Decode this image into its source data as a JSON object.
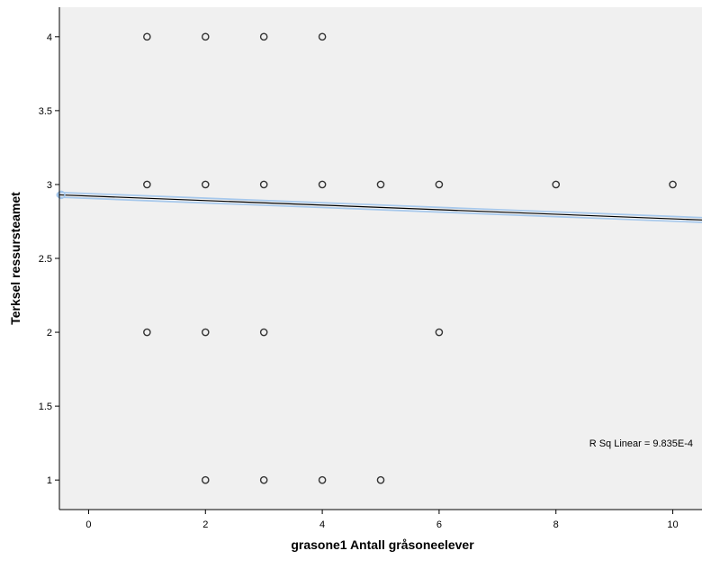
{
  "chart_data": {
    "type": "scatter",
    "xlabel": "grasone1 Antall gråsoneelever",
    "ylabel": "Terksel ressursteamet",
    "xlim": [
      -0.5,
      10.5
    ],
    "ylim": [
      0.8,
      4.2
    ],
    "x_ticks": [
      0,
      2,
      4,
      6,
      8,
      10
    ],
    "y_ticks": [
      1,
      1.5,
      2,
      2.5,
      3,
      3.5,
      4
    ],
    "grid": false,
    "points": [
      {
        "x": 1,
        "y": 4
      },
      {
        "x": 2,
        "y": 4
      },
      {
        "x": 3,
        "y": 4
      },
      {
        "x": 4,
        "y": 4
      },
      {
        "x": 1,
        "y": 3
      },
      {
        "x": 2,
        "y": 3
      },
      {
        "x": 3,
        "y": 3
      },
      {
        "x": 4,
        "y": 3
      },
      {
        "x": 5,
        "y": 3
      },
      {
        "x": 6,
        "y": 3
      },
      {
        "x": 8,
        "y": 3
      },
      {
        "x": 10,
        "y": 3
      },
      {
        "x": 1,
        "y": 2
      },
      {
        "x": 2,
        "y": 2
      },
      {
        "x": 3,
        "y": 2
      },
      {
        "x": 6,
        "y": 2
      },
      {
        "x": 2,
        "y": 1
      },
      {
        "x": 3,
        "y": 1
      },
      {
        "x": 4,
        "y": 1
      },
      {
        "x": 5,
        "y": 1
      }
    ],
    "fit_line": {
      "x": [
        -0.5,
        10.5
      ],
      "y": [
        2.93,
        2.76
      ]
    },
    "annotation": "R Sq Linear = 9.835E-4",
    "colors": {
      "background": "#f0f0f0",
      "marker": "#333333",
      "fit_line": "#000000",
      "fit_halo": "#a6c8ec"
    }
  }
}
